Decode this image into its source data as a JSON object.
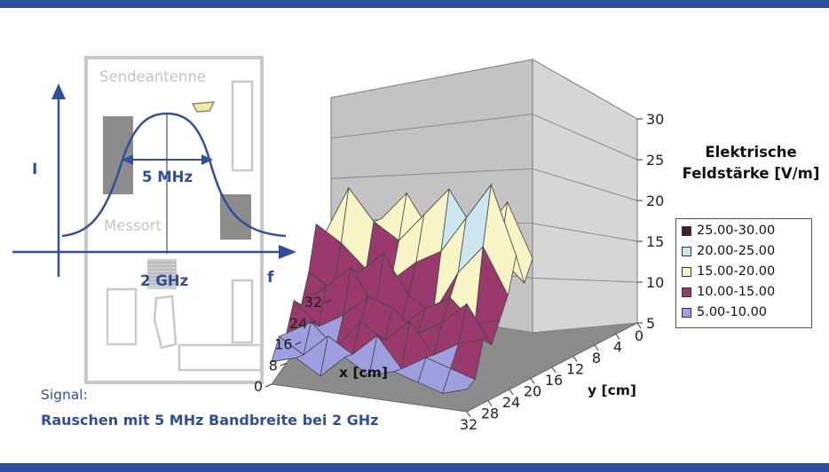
{
  "schematic": {
    "antenna_label": "Sendeantenne",
    "bandwidth_label": "5 MHz",
    "location_label": "Messort",
    "frequency_label": "2 GHz",
    "y_axis_label": "I",
    "x_axis_label": "f"
  },
  "signal": {
    "label": "Signal:",
    "description": "Rauschen mit 5 MHz Bandbreite bei 2 GHz"
  },
  "chart_data": {
    "type": "surface",
    "z_label": "Elektrische Feldstärke [V/m]",
    "z_label_lines": [
      "Elektrische",
      "Feldstärke [V/m]"
    ],
    "xlabel": "x [cm]",
    "ylabel": "y [cm]",
    "zlim": [
      5,
      30
    ],
    "z_ticks": [
      "30",
      "25",
      "20",
      "15",
      "10",
      "5"
    ],
    "x_ticks": [
      "32",
      "24",
      "16",
      "8",
      "0"
    ],
    "y_ticks": [
      "0",
      "4",
      "8",
      "12",
      "16",
      "20",
      "24",
      "28",
      "32"
    ],
    "legend": [
      {
        "label": "25.00-30.00",
        "color": "#4a1c3c"
      },
      {
        "label": "20.00-25.00",
        "color": "#cbe6ee"
      },
      {
        "label": "15.00-20.00",
        "color": "#f7f5c6"
      },
      {
        "label": "10.00-15.00",
        "color": "#9a3a6c"
      },
      {
        "label": "5.00-10.00",
        "color": "#9d9fe0"
      }
    ],
    "grid": true
  }
}
